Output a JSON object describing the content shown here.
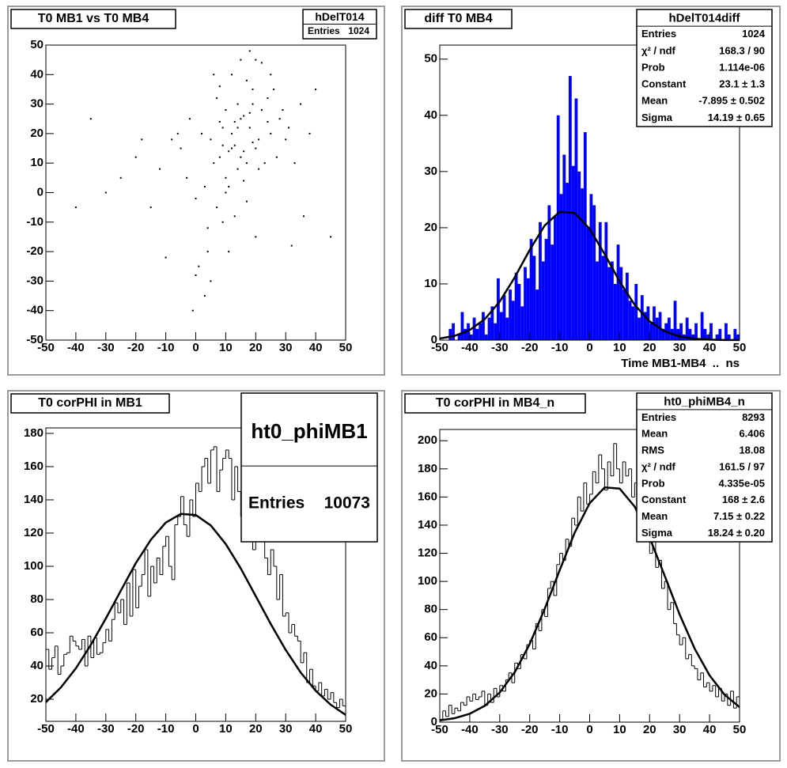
{
  "chart_data": [
    {
      "type": "scatter",
      "title": "T0 MB1 vs T0 MB4",
      "stats": {
        "title": "hDelT014",
        "rows": [
          [
            "Entries",
            "1024"
          ]
        ]
      },
      "xlim": [
        -50,
        50
      ],
      "ylim": [
        -50,
        50
      ],
      "xticks": [
        -50,
        -40,
        -30,
        -20,
        -10,
        0,
        10,
        20,
        30,
        40,
        50
      ],
      "yticks": [
        -50,
        -40,
        -30,
        -20,
        -10,
        0,
        10,
        20,
        30,
        40,
        50
      ],
      "color": "#000000",
      "x": [
        12,
        15,
        8,
        18,
        20,
        5,
        10,
        14,
        22,
        17,
        3,
        9,
        25,
        13,
        19,
        7,
        16,
        11,
        21,
        6,
        0,
        -5,
        28,
        24,
        2,
        -3,
        30,
        13,
        17,
        10,
        15,
        20,
        8,
        12,
        19,
        23,
        4,
        -8,
        -12,
        35,
        -20,
        32,
        -15,
        26,
        1,
        11,
        16,
        14,
        18,
        9,
        7,
        27,
        -2,
        22,
        5,
        -25,
        38,
        -30,
        40,
        -10,
        12,
        6,
        15,
        19,
        24,
        29,
        33,
        -6,
        3,
        10,
        17,
        21,
        13,
        8,
        -1,
        14,
        16,
        20,
        11,
        9,
        45,
        -35,
        -40,
        25,
        31,
        4,
        -18,
        36,
        0,
        18
      ],
      "values": [
        20,
        25,
        12,
        22,
        15,
        18,
        5,
        30,
        28,
        10,
        2,
        22,
        20,
        16,
        35,
        -5,
        26,
        14,
        8,
        10,
        -2,
        15,
        25,
        32,
        20,
        5,
        18,
        -8,
        38,
        28,
        12,
        -15,
        24,
        40,
        17,
        10,
        -12,
        18,
        8,
        30,
        12,
        -18,
        -5,
        35,
        -25,
        -20,
        4,
        22,
        27,
        -10,
        32,
        12,
        25,
        44,
        -30,
        5,
        20,
        0,
        35,
        -22,
        15,
        40,
        45,
        30,
        24,
        28,
        10,
        20,
        -35,
        0,
        -3,
        18,
        24,
        36,
        -40,
        8,
        14,
        45,
        2,
        16,
        -15,
        25,
        -5,
        40,
        22,
        -20,
        18,
        -8,
        -28,
        48
      ]
    },
    {
      "type": "histogram",
      "title": "diff T0 MB4",
      "x_label": "Time MB1-MB4  ..  ns",
      "stats": {
        "title": "hDelT014diff",
        "rows": [
          [
            "Entries",
            "1024"
          ],
          [
            "χ² / ndf",
            "168.3 / 90"
          ],
          [
            "Prob",
            "1.114e-06"
          ],
          [
            "Constant",
            "23.1 ± 1.3"
          ],
          [
            "Mean",
            "-7.895 ± 0.502"
          ],
          [
            "Sigma",
            "14.19 ± 0.65"
          ]
        ]
      },
      "xlim": [
        -50,
        50
      ],
      "ylim": [
        0,
        52.5
      ],
      "xticks": [
        -50,
        -40,
        -30,
        -20,
        -10,
        0,
        10,
        20,
        30,
        40,
        50
      ],
      "yticks": [
        0,
        10,
        20,
        30,
        40,
        50
      ],
      "fill_color": "#0000ff",
      "line_color": "#000000",
      "bins": [
        -50,
        -49,
        -48,
        -47,
        -46,
        -45,
        -44,
        -43,
        -42,
        -41,
        -40,
        -39,
        -38,
        -37,
        -36,
        -35,
        -34,
        -33,
        -32,
        -31,
        -30,
        -29,
        -28,
        -27,
        -26,
        -25,
        -24,
        -23,
        -22,
        -21,
        -20,
        -19,
        -18,
        -17,
        -16,
        -15,
        -14,
        -13,
        -12,
        -11,
        -10,
        -9,
        -8,
        -7,
        -6,
        -5,
        -4,
        -3,
        -2,
        -1,
        0,
        1,
        2,
        3,
        4,
        5,
        6,
        7,
        8,
        9,
        10,
        11,
        12,
        13,
        14,
        15,
        16,
        17,
        18,
        19,
        20,
        21,
        22,
        23,
        24,
        25,
        26,
        27,
        28,
        29,
        30,
        31,
        32,
        33,
        34,
        35,
        36,
        37,
        38,
        39,
        40,
        41,
        42,
        43,
        44,
        45,
        46,
        47,
        48,
        49,
        50
      ],
      "values": [
        0,
        0,
        0,
        2,
        3,
        0,
        1,
        5,
        2,
        3,
        1,
        4,
        2,
        3,
        5,
        1,
        4,
        6,
        3,
        11,
        5,
        8,
        4,
        9,
        7,
        12,
        10,
        6,
        13,
        11,
        18,
        15,
        9,
        21,
        14,
        18,
        24,
        17,
        22,
        40,
        26,
        33,
        28,
        47,
        31,
        43,
        30,
        27,
        37,
        20,
        26,
        24,
        14,
        21,
        15,
        21,
        13,
        14,
        10,
        17,
        13,
        9,
        12,
        7,
        6,
        10,
        4,
        8,
        5,
        6,
        3,
        6,
        4,
        5,
        2,
        3,
        4,
        2,
        7,
        2,
        3,
        1,
        4,
        2,
        1,
        3,
        0,
        5,
        2,
        1,
        3,
        0,
        1,
        2,
        0,
        3,
        1,
        0,
        2,
        1
      ],
      "fit": {
        "x": [
          -50,
          -45,
          -40,
          -35,
          -30,
          -25,
          -20,
          -15,
          -10,
          -5,
          0,
          5,
          10,
          15,
          20,
          25,
          30,
          35,
          40,
          45,
          50
        ],
        "values": [
          0.28,
          0.76,
          1.79,
          3.73,
          6.86,
          11.17,
          16.05,
          20.38,
          22.85,
          22.62,
          19.79,
          15.29,
          10.43,
          6.28,
          3.34,
          1.57,
          0.65,
          0.24,
          0.08,
          0.02,
          0.01
        ]
      }
    },
    {
      "type": "histogram",
      "title": "T0 corPHI in MB1",
      "stats": {
        "title": "ht0_phiMB1",
        "rows": [
          [
            "Entries",
            "10073"
          ]
        ]
      },
      "xlim": [
        -50,
        50
      ],
      "ylim": [
        6.7,
        183.3
      ],
      "xticks": [
        -50,
        -40,
        -30,
        -20,
        -10,
        0,
        10,
        20,
        30,
        40,
        50
      ],
      "yticks": [
        20,
        40,
        60,
        80,
        100,
        120,
        140,
        160,
        180
      ],
      "line_color": "#000000",
      "bins": [
        -50,
        -49,
        -48,
        -47,
        -46,
        -45,
        -44,
        -43,
        -42,
        -41,
        -40,
        -39,
        -38,
        -37,
        -36,
        -35,
        -34,
        -33,
        -32,
        -31,
        -30,
        -29,
        -28,
        -27,
        -26,
        -25,
        -24,
        -23,
        -22,
        -21,
        -20,
        -19,
        -18,
        -17,
        -16,
        -15,
        -14,
        -13,
        -12,
        -11,
        -10,
        -9,
        -8,
        -7,
        -6,
        -5,
        -4,
        -3,
        -2,
        -1,
        0,
        1,
        2,
        3,
        4,
        5,
        6,
        7,
        8,
        9,
        10,
        11,
        12,
        13,
        14,
        15,
        16,
        17,
        18,
        19,
        20,
        21,
        22,
        23,
        24,
        25,
        26,
        27,
        28,
        29,
        30,
        31,
        32,
        33,
        34,
        35,
        36,
        37,
        38,
        39,
        40,
        41,
        42,
        43,
        44,
        45,
        46,
        47,
        48,
        49,
        50
      ],
      "values": [
        50,
        38,
        45,
        52,
        35,
        40,
        47,
        48,
        58,
        55,
        52,
        50,
        56,
        40,
        58,
        45,
        57,
        47,
        48,
        54,
        62,
        55,
        68,
        78,
        72,
        80,
        65,
        90,
        70,
        98,
        75,
        88,
        95,
        110,
        82,
        100,
        90,
        105,
        95,
        112,
        118,
        100,
        92,
        125,
        130,
        142,
        125,
        118,
        140,
        130,
        150,
        145,
        160,
        165,
        150,
        170,
        172,
        145,
        158,
        165,
        170,
        165,
        140,
        160,
        145,
        130,
        150,
        125,
        150,
        110,
        140,
        115,
        130,
        105,
        95,
        110,
        100,
        80,
        95,
        70,
        72,
        60,
        65,
        58,
        55,
        42,
        48,
        30,
        38,
        28,
        25,
        30,
        22,
        26,
        20,
        24,
        18,
        15,
        20,
        16
      ],
      "fit": {
        "x": [
          -50,
          -45,
          -40,
          -35,
          -30,
          -25,
          -20,
          -15,
          -10,
          -5,
          0,
          5,
          10,
          15,
          20,
          25,
          30,
          35,
          40,
          45,
          50
        ],
        "values": [
          18.2,
          27.1,
          38.6,
          52.7,
          68.6,
          85.4,
          101.9,
          116.0,
          126.3,
          131.5,
          130.9,
          124.6,
          113.4,
          98.7,
          82.1,
          65.3,
          49.7,
          36.1,
          25.1,
          16.7,
          10.6
        ]
      }
    },
    {
      "type": "histogram",
      "title": "T0 corPHI in MB4_n",
      "stats": {
        "title": "ht0_phiMB4_n",
        "rows": [
          [
            "Entries",
            "8293"
          ],
          [
            "Mean",
            "6.406"
          ],
          [
            "RMS",
            "18.08"
          ],
          [
            "χ² / ndf",
            "161.5 / 97"
          ],
          [
            "Prob",
            "4.335e-05"
          ],
          [
            "Constant",
            "168 ± 2.6"
          ],
          [
            "Mean",
            "7.15 ± 0.22"
          ],
          [
            "Sigma",
            "18.24 ± 0.20"
          ]
        ]
      },
      "xlim": [
        -50,
        50
      ],
      "ylim": [
        0,
        208
      ],
      "xticks": [
        -50,
        -40,
        -30,
        -20,
        -10,
        0,
        10,
        20,
        30,
        40,
        50
      ],
      "yticks": [
        0,
        20,
        40,
        60,
        80,
        100,
        120,
        140,
        160,
        180,
        200
      ],
      "line_color": "#000000",
      "bins": [
        -50,
        -49,
        -48,
        -47,
        -46,
        -45,
        -44,
        -43,
        -42,
        -41,
        -40,
        -39,
        -38,
        -37,
        -36,
        -35,
        -34,
        -33,
        -32,
        -31,
        -30,
        -29,
        -28,
        -27,
        -26,
        -25,
        -24,
        -23,
        -22,
        -21,
        -20,
        -19,
        -18,
        -17,
        -16,
        -15,
        -14,
        -13,
        -12,
        -11,
        -10,
        -9,
        -8,
        -7,
        -6,
        -5,
        -4,
        -3,
        -2,
        -1,
        0,
        1,
        2,
        3,
        4,
        5,
        6,
        7,
        8,
        9,
        10,
        11,
        12,
        13,
        14,
        15,
        16,
        17,
        18,
        19,
        20,
        21,
        22,
        23,
        24,
        25,
        26,
        27,
        28,
        29,
        30,
        31,
        32,
        33,
        34,
        35,
        36,
        37,
        38,
        39,
        40,
        41,
        42,
        43,
        44,
        45,
        46,
        47,
        48,
        49,
        50
      ],
      "values": [
        2,
        8,
        4,
        12,
        6,
        10,
        8,
        14,
        12,
        18,
        15,
        20,
        16,
        18,
        22,
        12,
        20,
        14,
        24,
        18,
        26,
        22,
        30,
        35,
        28,
        42,
        38,
        48,
        45,
        55,
        58,
        52,
        70,
        65,
        80,
        75,
        95,
        100,
        90,
        112,
        120,
        115,
        130,
        125,
        145,
        140,
        160,
        150,
        170,
        155,
        162,
        178,
        170,
        190,
        180,
        165,
        185,
        175,
        198,
        180,
        170,
        185,
        175,
        180,
        160,
        170,
        150,
        165,
        140,
        145,
        120,
        130,
        110,
        115,
        95,
        100,
        80,
        85,
        70,
        62,
        55,
        60,
        45,
        48,
        40,
        38,
        30,
        35,
        25,
        28,
        22,
        26,
        18,
        24,
        15,
        20,
        12,
        22,
        10,
        18
      ],
      "fit": {
        "x": [
          -50,
          -45,
          -40,
          -35,
          -30,
          -25,
          -20,
          -15,
          -10,
          -5,
          0,
          5,
          10,
          15,
          20,
          25,
          30,
          35,
          40,
          45,
          50
        ],
        "values": [
          1.24,
          2.82,
          5.95,
          11.6,
          21.1,
          35.5,
          55.5,
          80.4,
          108.0,
          134.6,
          155.6,
          166.8,
          166.0,
          153.2,
          131.1,
          104.1,
          76.6,
          52.4,
          33.2,
          19.5,
          10.7
        ]
      }
    }
  ]
}
